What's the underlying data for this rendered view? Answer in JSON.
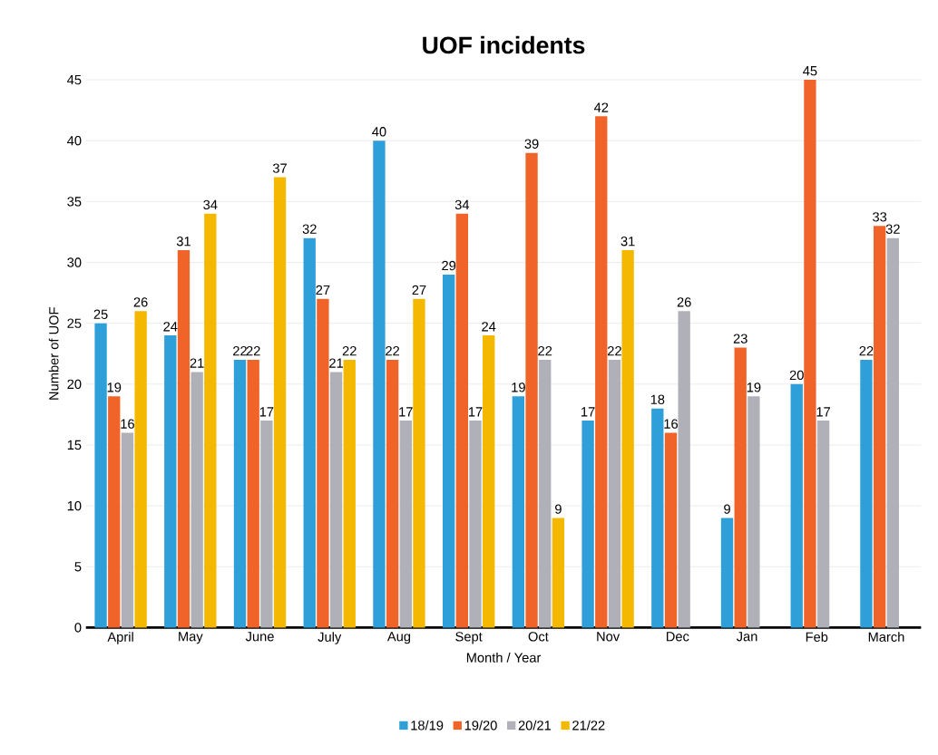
{
  "chart_data": {
    "type": "bar",
    "title": "UOF incidents",
    "xlabel": "Month / Year",
    "ylabel": "Number of UOF",
    "categories": [
      "April",
      "May",
      "June",
      "July",
      "Aug",
      "Sept",
      "Oct",
      "Nov",
      "Dec",
      "Jan",
      "Feb",
      "March"
    ],
    "series": [
      {
        "name": "18/19",
        "color": "#2e9fd8",
        "values": [
          25,
          24,
          22,
          32,
          40,
          29,
          19,
          17,
          18,
          9,
          20,
          22
        ]
      },
      {
        "name": "19/20",
        "color": "#f0642a",
        "values": [
          19,
          31,
          22,
          27,
          22,
          34,
          39,
          42,
          16,
          23,
          45,
          33
        ]
      },
      {
        "name": "20/21",
        "color": "#b0b0b8",
        "values": [
          16,
          21,
          17,
          21,
          17,
          17,
          22,
          22,
          26,
          19,
          17,
          32
        ]
      },
      {
        "name": "21/22",
        "color": "#f5b800",
        "values": [
          26,
          34,
          37,
          22,
          27,
          24,
          9,
          31,
          null,
          null,
          null,
          null
        ]
      }
    ],
    "ylim": [
      0,
      45
    ],
    "yticks": [
      0,
      5,
      10,
      15,
      20,
      25,
      30,
      35,
      40,
      45
    ],
    "grid": "y",
    "legend": "bottom",
    "data_labels": true
  }
}
